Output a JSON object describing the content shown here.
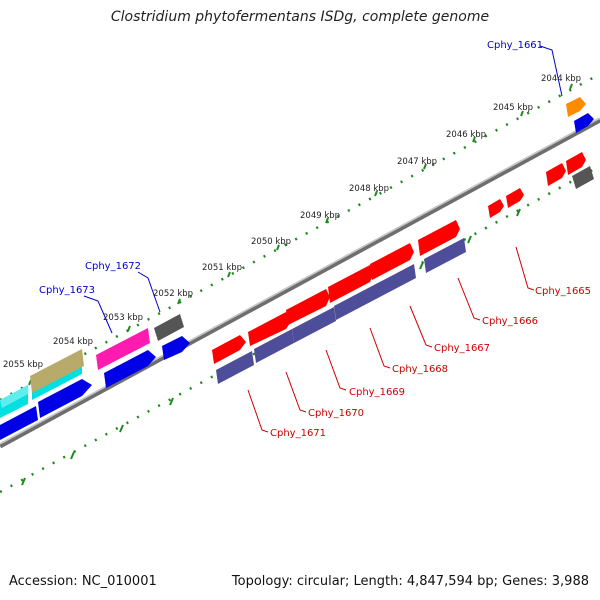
{
  "title": "Clostridium phytofermentans ISDg, complete genome",
  "footer": {
    "accession": "Accession: NC_010001",
    "topology": "Topology: circular; Length: 4,847,594 bp; Genes: 3,988"
  },
  "colors": {
    "tick": "#1e8a1e",
    "backbone": "#909090",
    "forward_gene": "#ff0000",
    "reverse_gene": "#4d4d99",
    "label_forward": "#0000cc",
    "label_reverse": "#cc0000"
  },
  "scale_labels": [
    "2055 kbp",
    "2054 kbp",
    "2053 kbp",
    "2052 kbp",
    "2051 kbp",
    "2050 kbp",
    "2049 kbp",
    "2048 kbp",
    "2047 kbp",
    "2046 kbp",
    "2045 kbp",
    "2044 kbp"
  ],
  "gene_labels": {
    "top": [
      "Cphy_1673",
      "Cphy_1672",
      "Cphy_1661"
    ],
    "bottom": [
      "Cphy_1671",
      "Cphy_1670",
      "Cphy_1669",
      "Cphy_1668",
      "Cphy_1667",
      "Cphy_1666",
      "Cphy_1665"
    ]
  }
}
